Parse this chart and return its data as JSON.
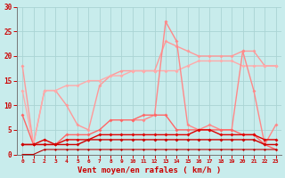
{
  "xlabel": "Vent moyen/en rafales ( km/h )",
  "xlim": [
    -0.5,
    23.5
  ],
  "ylim": [
    0,
    30
  ],
  "yticks": [
    0,
    5,
    10,
    15,
    20,
    25,
    30
  ],
  "xticks": [
    0,
    1,
    2,
    3,
    4,
    5,
    6,
    7,
    8,
    9,
    10,
    11,
    12,
    13,
    14,
    15,
    16,
    17,
    18,
    19,
    20,
    21,
    22,
    23
  ],
  "bg_color": "#c8ecec",
  "grid_color": "#aad4d4",
  "lines": [
    {
      "y": [
        18,
        2,
        13,
        13,
        10,
        6,
        5,
        14,
        16,
        17,
        17,
        17,
        17,
        23,
        22,
        21,
        20,
        20,
        20,
        20,
        21,
        21,
        18,
        18
      ],
      "color": "#ff9999",
      "lw": 1.0,
      "marker": "D",
      "ms": 2.0
    },
    {
      "y": [
        13,
        2,
        13,
        13,
        14,
        14,
        15,
        15,
        16,
        16,
        17,
        17,
        17,
        17,
        17,
        18,
        19,
        19,
        19,
        19,
        18,
        18,
        18,
        18
      ],
      "color": "#ffaaaa",
      "lw": 1.0,
      "marker": "D",
      "ms": 2.0
    },
    {
      "y": [
        null,
        null,
        null,
        null,
        null,
        null,
        null,
        null,
        null,
        null,
        7,
        7,
        8,
        27,
        23,
        6,
        5,
        6,
        5,
        5,
        21,
        13,
        2,
        6
      ],
      "color": "#ff8888",
      "lw": 1.0,
      "marker": "D",
      "ms": 2.0
    },
    {
      "y": [
        8,
        2,
        2,
        2,
        4,
        4,
        4,
        5,
        7,
        7,
        7,
        8,
        8,
        8,
        5,
        5,
        5,
        5,
        5,
        5,
        4,
        4,
        2,
        1
      ],
      "color": "#ff6666",
      "lw": 1.0,
      "marker": "D",
      "ms": 2.0
    },
    {
      "y": [
        2,
        2,
        3,
        2,
        3,
        3,
        3,
        4,
        4,
        4,
        4,
        4,
        4,
        4,
        4,
        4,
        5,
        5,
        4,
        4,
        4,
        4,
        3,
        3
      ],
      "color": "#dd0000",
      "lw": 1.0,
      "marker": "D",
      "ms": 2.0
    },
    {
      "y": [
        2,
        2,
        2,
        2,
        2,
        2,
        3,
        3,
        3,
        3,
        3,
        3,
        3,
        3,
        3,
        3,
        3,
        3,
        3,
        3,
        3,
        3,
        2,
        2
      ],
      "color": "#cc0000",
      "lw": 1.0,
      "marker": "D",
      "ms": 2.0
    },
    {
      "y": [
        0,
        0,
        1,
        1,
        1,
        1,
        1,
        1,
        1,
        1,
        1,
        1,
        1,
        1,
        1,
        1,
        1,
        1,
        1,
        1,
        1,
        1,
        1,
        1
      ],
      "color": "#bb0000",
      "lw": 0.8,
      "marker": "D",
      "ms": 1.5
    }
  ]
}
